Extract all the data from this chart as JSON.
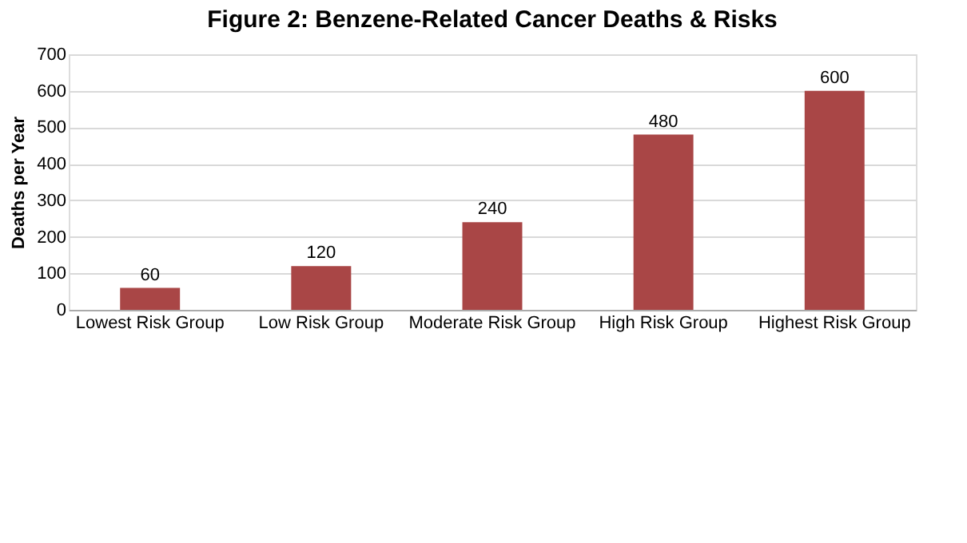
{
  "chart_data": {
    "type": "bar",
    "title": "Figure 2: Benzene-Related Cancer Deaths & Risks",
    "ylabel": "Deaths per Year",
    "categories": [
      "Lowest Risk Group",
      "Low Risk Group",
      "Moderate Risk Group",
      "High Risk Group",
      "Highest Risk Group"
    ],
    "values": [
      60,
      120,
      240,
      480,
      600
    ],
    "color": "#a94646",
    "ylim": [
      0,
      700
    ],
    "yticks": [
      0,
      100,
      200,
      300,
      400,
      500,
      600,
      700
    ],
    "grid": "y",
    "data_labels": true
  }
}
